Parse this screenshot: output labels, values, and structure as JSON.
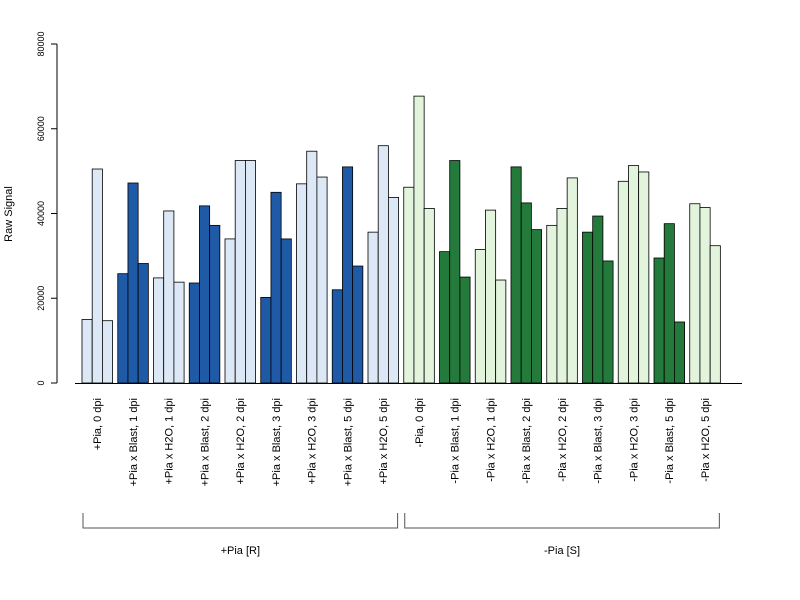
{
  "chart_data": {
    "type": "bar",
    "ylabel": "Raw Signal",
    "ylim": [
      0,
      80000
    ],
    "yticks": [
      "0",
      "20000",
      "40000",
      "60000",
      "80000"
    ],
    "grid": false,
    "legend": "none",
    "colors": {
      "light_blue": "#dce8f5",
      "dark_blue": "#1f5aa6",
      "light_green": "#e2f5dc",
      "dark_green": "#237a3b",
      "outline": "#000000",
      "bracket": "#555555"
    },
    "categories": [
      {
        "label": "+Pia, 0 dpi",
        "fill": "light_blue",
        "values": [
          15000,
          50500,
          14700
        ]
      },
      {
        "label": "+Pia x Blast, 1 dpi",
        "fill": "dark_blue",
        "values": [
          25800,
          47200,
          28200
        ]
      },
      {
        "label": "+Pia x H2O, 1 dpi",
        "fill": "light_blue",
        "values": [
          24800,
          40600,
          23800
        ]
      },
      {
        "label": "+Pia x Blast, 2 dpi",
        "fill": "dark_blue",
        "values": [
          23600,
          41800,
          37200
        ]
      },
      {
        "label": "+Pia x H2O, 2 dpi",
        "fill": "light_blue",
        "values": [
          34000,
          52500,
          52500
        ]
      },
      {
        "label": "+Pia x Blast, 3 dpi",
        "fill": "dark_blue",
        "values": [
          20200,
          45000,
          34000
        ]
      },
      {
        "label": "+Pia x H2O, 3 dpi",
        "fill": "light_blue",
        "values": [
          47000,
          54700,
          48600
        ]
      },
      {
        "label": "+Pia x Blast, 5 dpi",
        "fill": "dark_blue",
        "values": [
          22000,
          51000,
          27600
        ]
      },
      {
        "label": "+Pia x H2O, 5 dpi",
        "fill": "light_blue",
        "values": [
          35600,
          56000,
          43800
        ]
      },
      {
        "label": "-Pia, 0 dpi",
        "fill": "light_green",
        "values": [
          46200,
          67700,
          41200
        ]
      },
      {
        "label": "-Pia x Blast, 1 dpi",
        "fill": "dark_green",
        "values": [
          31000,
          52500,
          25000
        ]
      },
      {
        "label": "-Pia x H2O, 1 dpi",
        "fill": "light_green",
        "values": [
          31500,
          40800,
          24300
        ]
      },
      {
        "label": "-Pia x Blast, 2 dpi",
        "fill": "dark_green",
        "values": [
          51000,
          42500,
          36200
        ]
      },
      {
        "label": "-Pia x H2O, 2 dpi",
        "fill": "light_green",
        "values": [
          37200,
          41200,
          48400
        ]
      },
      {
        "label": "-Pia x Blast, 3 dpi",
        "fill": "dark_green",
        "values": [
          35600,
          39400,
          28800
        ]
      },
      {
        "label": "-Pia x H2O, 3 dpi",
        "fill": "light_green",
        "values": [
          47600,
          51300,
          49800
        ]
      },
      {
        "label": "-Pia x Blast, 5 dpi",
        "fill": "dark_green",
        "values": [
          29500,
          37600,
          14400
        ]
      },
      {
        "label": "-Pia x H2O, 5 dpi",
        "fill": "light_green",
        "values": [
          42300,
          41400,
          32400
        ]
      }
    ],
    "groups": [
      {
        "label": "+Pia [R]",
        "from": 0,
        "to": 8
      },
      {
        "label": "-Pia [S]",
        "from": 9,
        "to": 17
      }
    ]
  }
}
